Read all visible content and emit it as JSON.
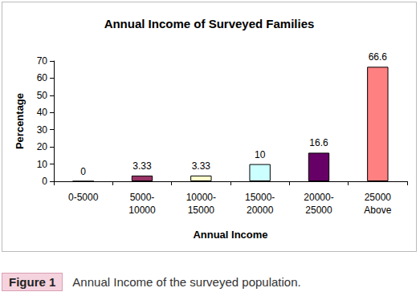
{
  "chart_data": {
    "type": "bar",
    "title": "Annual Income of Surveyed Families",
    "x_label": "Annual Income",
    "y_label": "Percentage",
    "categories": [
      "0-5000",
      "5000-\n10000",
      "10000-\n15000",
      "15000-\n20000",
      "20000-\n25000",
      "25000\nAbove"
    ],
    "values": [
      0,
      3.33,
      3.33,
      10,
      16.6,
      66.6
    ],
    "colors": [
      "#9999ff",
      "#993366",
      "#ffffcc",
      "#ccffff",
      "#660066",
      "#ff8080"
    ],
    "ylim": [
      0,
      70
    ],
    "yticks": [
      0,
      10,
      20,
      30,
      40,
      50,
      60,
      70
    ],
    "grid": false,
    "data_labels": true,
    "figure_label": "Figure 1",
    "caption": "Annual Income of the surveyed population."
  }
}
